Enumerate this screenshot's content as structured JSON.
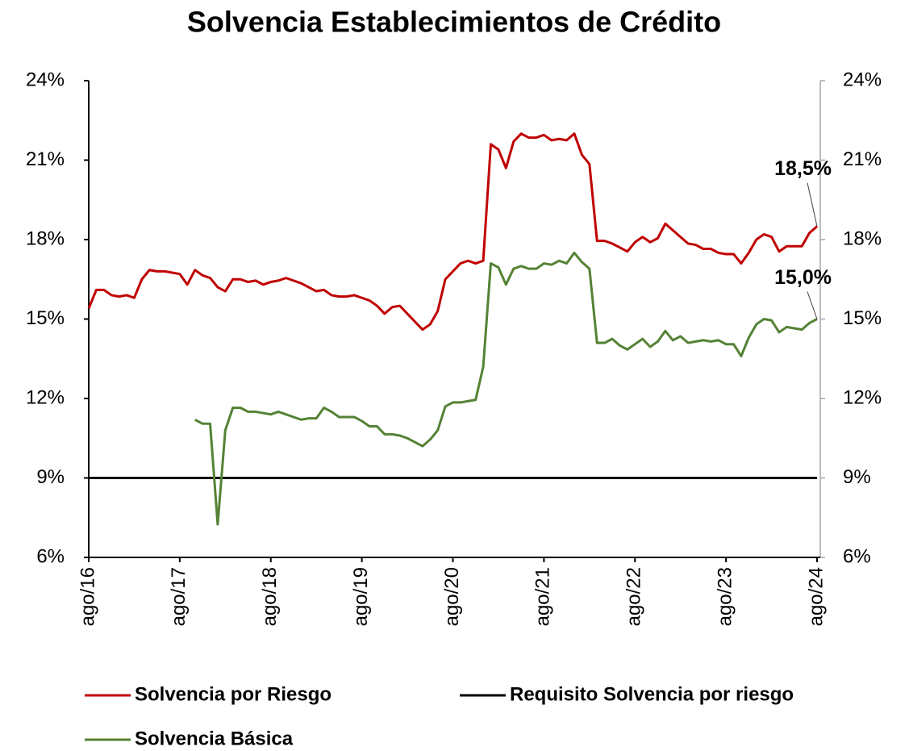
{
  "chart_data": {
    "type": "line",
    "title": "Solvencia Establecimientos de Crédito",
    "categories": [
      "ago/16",
      null,
      null,
      null,
      null,
      null,
      null,
      null,
      null,
      null,
      null,
      null,
      "ago/17",
      null,
      null,
      null,
      null,
      null,
      null,
      null,
      null,
      null,
      null,
      null,
      "ago/18",
      null,
      null,
      null,
      null,
      null,
      null,
      null,
      null,
      null,
      null,
      null,
      "ago/19",
      null,
      null,
      null,
      null,
      null,
      null,
      null,
      null,
      null,
      null,
      null,
      "ago/20",
      null,
      null,
      null,
      null,
      null,
      null,
      null,
      null,
      null,
      null,
      null,
      "ago/21",
      null,
      null,
      null,
      null,
      null,
      null,
      null,
      null,
      null,
      null,
      null,
      "ago/22",
      null,
      null,
      null,
      null,
      null,
      null,
      null,
      null,
      null,
      null,
      null,
      "ago/23",
      null,
      null,
      null,
      null,
      null,
      null,
      null,
      null,
      null,
      null,
      null,
      "ago/24"
    ],
    "series": [
      {
        "name": "Solvencia por Riesgo",
        "color": "#c00000",
        "label_color": "#c00000",
        "values": [
          15.4,
          16.1,
          16.1,
          15.9,
          15.85,
          15.9,
          15.8,
          16.5,
          16.85,
          16.8,
          16.8,
          16.75,
          16.7,
          16.3,
          16.85,
          16.65,
          16.55,
          16.2,
          16.05,
          16.5,
          16.5,
          16.4,
          16.45,
          16.3,
          16.4,
          16.45,
          16.55,
          16.45,
          16.35,
          16.2,
          16.05,
          16.1,
          15.9,
          15.85,
          15.85,
          15.9,
          15.8,
          15.7,
          15.5,
          15.2,
          15.45,
          15.5,
          15.2,
          14.9,
          14.6,
          14.8,
          15.3,
          16.5,
          16.8,
          17.1,
          17.2,
          17.1,
          17.2,
          21.6,
          21.4,
          20.7,
          21.7,
          22.0,
          21.85,
          21.85,
          21.95,
          21.75,
          21.8,
          21.75,
          22.0,
          21.2,
          20.85,
          17.95,
          17.95,
          17.85,
          17.7,
          17.55,
          17.9,
          18.1,
          17.9,
          18.05,
          18.6,
          18.35,
          18.1,
          17.85,
          17.8,
          17.65,
          17.65,
          17.5,
          17.45,
          17.45,
          17.1,
          17.5,
          18.0,
          18.2,
          18.1,
          17.55,
          17.75,
          17.75,
          17.75,
          18.25,
          18.5
        ],
        "value_labels": [
          null,
          null,
          null,
          null,
          null,
          null,
          null,
          null,
          null,
          null,
          null,
          null,
          null,
          null,
          null,
          null,
          null,
          null,
          null,
          null,
          null,
          null,
          null,
          null,
          null,
          null,
          null,
          null,
          null,
          null,
          null,
          null,
          null,
          null,
          null,
          null,
          null,
          null,
          null,
          null,
          null,
          null,
          null,
          null,
          null,
          null,
          null,
          null,
          null,
          null,
          null,
          null,
          null,
          null,
          null,
          null,
          null,
          null,
          null,
          null,
          null,
          null,
          null,
          null,
          null,
          null,
          null,
          null,
          null,
          null,
          null,
          null,
          null,
          null,
          null,
          null,
          null,
          null,
          null,
          null,
          null,
          null,
          null,
          null,
          null,
          null,
          null,
          null,
          null,
          null,
          null,
          null,
          null,
          null,
          null,
          null,
          "18,5%"
        ]
      },
      {
        "name": "Requisito Solvencia por riesgo",
        "color": "#000000",
        "values": [
          9,
          9,
          9,
          9,
          9,
          9,
          9,
          9,
          9,
          9,
          9,
          9,
          9,
          9,
          9,
          9,
          9,
          9,
          9,
          9,
          9,
          9,
          9,
          9,
          9,
          9,
          9,
          9,
          9,
          9,
          9,
          9,
          9,
          9,
          9,
          9,
          9,
          9,
          9,
          9,
          9,
          9,
          9,
          9,
          9,
          9,
          9,
          9,
          9,
          9,
          9,
          9,
          9,
          9,
          9,
          9,
          9,
          9,
          9,
          9,
          9,
          9,
          9,
          9,
          9,
          9,
          9,
          9,
          9,
          9,
          9,
          9,
          9,
          9,
          9,
          9,
          9,
          9,
          9,
          9,
          9,
          9,
          9,
          9,
          9,
          9,
          9,
          9,
          9,
          9,
          9,
          9,
          9,
          9,
          9,
          9,
          9
        ]
      },
      {
        "name": "Solvencia Básica",
        "color": "#548235",
        "label_color": "#92d050",
        "values": [
          null,
          null,
          null,
          null,
          null,
          null,
          null,
          null,
          null,
          null,
          null,
          null,
          null,
          null,
          11.2,
          11.05,
          11.05,
          7.25,
          10.8,
          11.65,
          11.65,
          11.5,
          11.5,
          11.45,
          11.4,
          11.5,
          11.4,
          11.3,
          11.2,
          11.25,
          11.25,
          11.65,
          11.5,
          11.3,
          11.3,
          11.3,
          11.15,
          10.95,
          10.95,
          10.65,
          10.65,
          10.6,
          10.5,
          10.35,
          10.2,
          10.45,
          10.8,
          11.7,
          11.85,
          11.85,
          11.9,
          11.95,
          13.2,
          17.1,
          16.95,
          16.3,
          16.9,
          17.0,
          16.9,
          16.9,
          17.1,
          17.05,
          17.2,
          17.1,
          17.5,
          17.15,
          16.9,
          14.1,
          14.1,
          14.25,
          14.0,
          13.85,
          14.05,
          14.25,
          13.95,
          14.15,
          14.55,
          14.2,
          14.35,
          14.1,
          14.15,
          14.2,
          14.15,
          14.2,
          14.05,
          14.05,
          13.6,
          14.3,
          14.8,
          15.0,
          14.95,
          14.5,
          14.7,
          14.65,
          14.6,
          14.85,
          15.0
        ],
        "value_labels": [
          null,
          null,
          null,
          null,
          null,
          null,
          null,
          null,
          null,
          null,
          null,
          null,
          null,
          null,
          null,
          null,
          null,
          null,
          null,
          null,
          null,
          null,
          null,
          null,
          null,
          null,
          null,
          null,
          null,
          null,
          null,
          null,
          null,
          null,
          null,
          null,
          null,
          null,
          null,
          null,
          null,
          null,
          null,
          null,
          null,
          null,
          null,
          null,
          null,
          null,
          null,
          null,
          null,
          null,
          null,
          null,
          null,
          null,
          null,
          null,
          null,
          null,
          null,
          null,
          null,
          null,
          null,
          null,
          null,
          null,
          null,
          null,
          null,
          null,
          null,
          null,
          null,
          null,
          null,
          null,
          null,
          null,
          null,
          null,
          null,
          null,
          null,
          null,
          null,
          null,
          null,
          null,
          null,
          null,
          null,
          null,
          "15,0%"
        ]
      }
    ],
    "ylim": [
      6,
      24
    ],
    "yticks": [
      {
        "value": 6,
        "label": "6%"
      },
      {
        "value": 9,
        "label": "9%"
      },
      {
        "value": 12,
        "label": "12%"
      },
      {
        "value": 15,
        "label": "15%"
      },
      {
        "value": 18,
        "label": "18%"
      },
      {
        "value": 21,
        "label": "21%"
      },
      {
        "value": 24,
        "label": "24%"
      }
    ],
    "y2lim": [
      6,
      24
    ],
    "y2ticks": [
      {
        "value": 6,
        "label": "6%"
      },
      {
        "value": 9,
        "label": "9%"
      },
      {
        "value": 12,
        "label": "12%"
      },
      {
        "value": 15,
        "label": "15%"
      },
      {
        "value": 18,
        "label": "18%"
      },
      {
        "value": 21,
        "label": "21%"
      },
      {
        "value": 24,
        "label": "24%"
      }
    ],
    "grid": false,
    "legend": "bottom"
  }
}
